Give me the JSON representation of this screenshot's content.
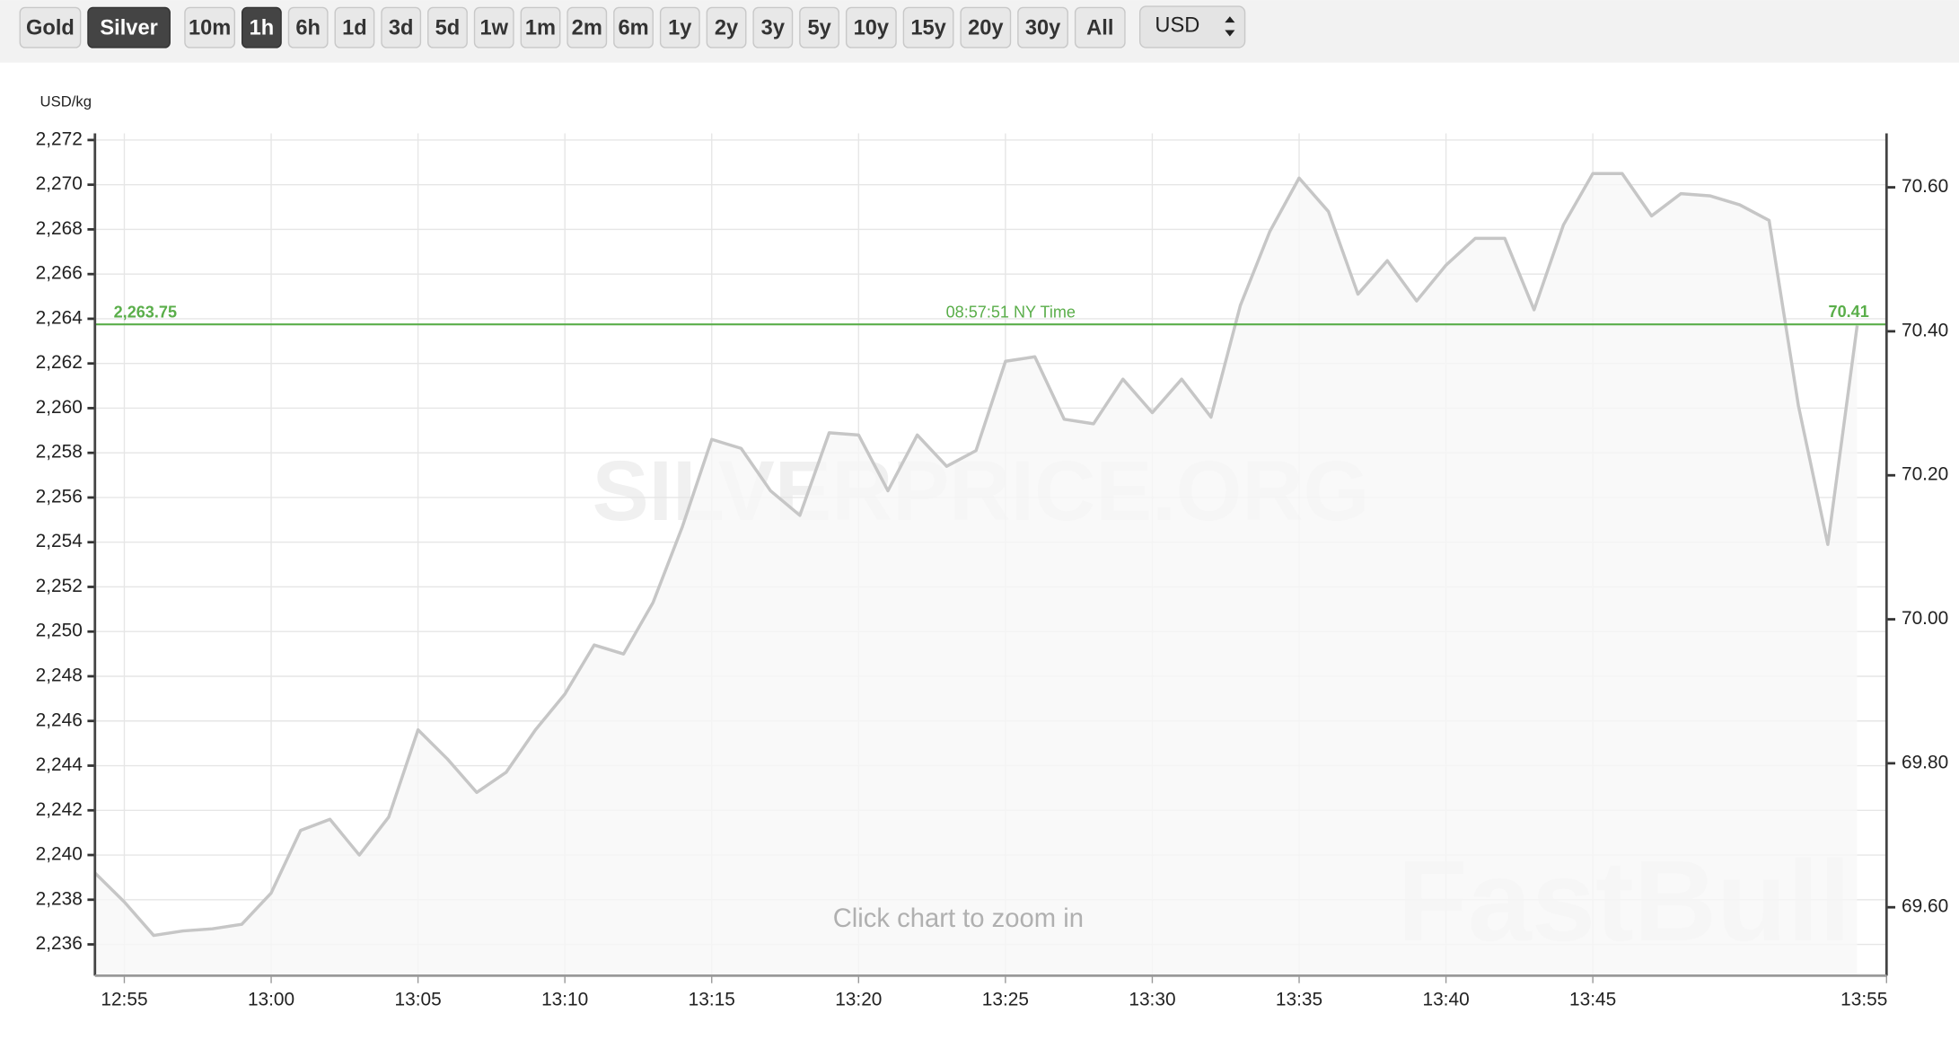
{
  "toolbar": {
    "metals": [
      "Gold",
      "Silver"
    ],
    "selected_metal": "Silver",
    "ranges": [
      "10m",
      "1h",
      "6h",
      "1d",
      "3d",
      "5d",
      "1w",
      "1m",
      "2m",
      "6m",
      "1y",
      "2y",
      "3y",
      "5y",
      "10y",
      "15y",
      "20y",
      "30y",
      "All"
    ],
    "selected_range": "1h",
    "currency": "USD"
  },
  "chart_data": {
    "type": "line",
    "y_label": "USD/kg",
    "color": "#c6c6c6",
    "fill": "#f7f7f7",
    "grid": true,
    "x": [
      "12:54",
      "12:55",
      "12:56",
      "12:57",
      "12:58",
      "12:59",
      "13:00",
      "13:01",
      "13:02",
      "13:03",
      "13:04",
      "13:05",
      "13:06",
      "13:07",
      "13:08",
      "13:09",
      "13:10",
      "13:11",
      "13:12",
      "13:13",
      "13:14",
      "13:15",
      "13:16",
      "13:17",
      "13:18",
      "13:19",
      "13:20",
      "13:21",
      "13:22",
      "13:23",
      "13:24",
      "13:25",
      "13:26",
      "13:27",
      "13:28",
      "13:29",
      "13:30",
      "13:31",
      "13:32",
      "13:33",
      "13:34",
      "13:35",
      "13:36",
      "13:37",
      "13:38",
      "13:39",
      "13:40",
      "13:41",
      "13:42",
      "13:43",
      "13:44",
      "13:45",
      "13:46",
      "13:47",
      "13:48",
      "13:49",
      "13:50",
      "13:51",
      "13:52",
      "13:53",
      "13:54"
    ],
    "values": [
      2239.2,
      2237.9,
      2236.4,
      2236.6,
      2236.7,
      2236.9,
      2238.3,
      2241.1,
      2241.6,
      2240.0,
      2241.7,
      2245.6,
      2244.3,
      2242.8,
      2243.7,
      2245.6,
      2247.2,
      2249.4,
      2249.0,
      2251.3,
      2254.7,
      2258.6,
      2258.2,
      2256.3,
      2255.2,
      2258.9,
      2258.8,
      2256.3,
      2258.8,
      2257.4,
      2258.1,
      2262.1,
      2262.3,
      2259.5,
      2259.3,
      2261.3,
      2259.8,
      2261.3,
      2259.6,
      2264.6,
      2267.9,
      2270.3,
      2268.8,
      2265.1,
      2266.6,
      2264.8,
      2266.4,
      2267.6,
      2267.6,
      2264.4,
      2268.2,
      2270.5,
      2270.5,
      2268.6,
      2269.6,
      2269.5,
      2269.1,
      2268.4,
      2260.1,
      2253.9,
      2263.7
    ],
    "xlim": [
      "12:54",
      "13:55"
    ],
    "xticks": [
      "12:55",
      "13:00",
      "13:05",
      "13:10",
      "13:15",
      "13:20",
      "13:25",
      "13:30",
      "13:35",
      "13:40",
      "13:45",
      "13:55"
    ],
    "ylim": [
      2234.6,
      2272.3
    ],
    "yticks": [
      {
        "value": 2236,
        "label": "2,236"
      },
      {
        "value": 2238,
        "label": "2,238"
      },
      {
        "value": 2240,
        "label": "2,240"
      },
      {
        "value": 2242,
        "label": "2,242"
      },
      {
        "value": 2244,
        "label": "2,244"
      },
      {
        "value": 2246,
        "label": "2,246"
      },
      {
        "value": 2248,
        "label": "2,248"
      },
      {
        "value": 2250,
        "label": "2,250"
      },
      {
        "value": 2252,
        "label": "2,252"
      },
      {
        "value": 2254,
        "label": "2,254"
      },
      {
        "value": 2256,
        "label": "2,256"
      },
      {
        "value": 2258,
        "label": "2,258"
      },
      {
        "value": 2260,
        "label": "2,260"
      },
      {
        "value": 2262,
        "label": "2,262"
      },
      {
        "value": 2264,
        "label": "2,264"
      },
      {
        "value": 2266,
        "label": "2,266"
      },
      {
        "value": 2268,
        "label": "2,268"
      },
      {
        "value": 2270,
        "label": "2,270"
      },
      {
        "value": 2272,
        "label": "2,272"
      }
    ],
    "y2lim": [
      69.505,
      70.675
    ],
    "y2ticks": [
      {
        "value": 69.6,
        "label": "69.60"
      },
      {
        "value": 69.8,
        "label": "69.80"
      },
      {
        "value": 70,
        "label": "70.00"
      },
      {
        "value": 70.2,
        "label": "70.20"
      },
      {
        "value": 70.4,
        "label": "70.40"
      },
      {
        "value": 70.6,
        "label": "70.60"
      }
    ],
    "reference_line": {
      "value": 2263.75,
      "value_label": "2,263.75",
      "time_label": "08:57:51 NY Time",
      "y2_value": 70.41,
      "color": "#5aae4a"
    },
    "annotations": [
      "Click chart to zoom in"
    ],
    "watermarks": [
      "SILVERPRICE.ORG",
      "FastBull"
    ]
  }
}
